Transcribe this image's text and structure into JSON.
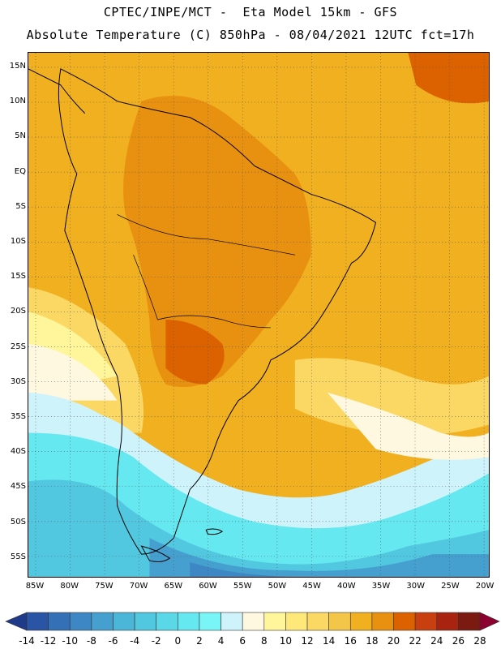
{
  "header": {
    "line1": "CPTEC/INPE/MCT -  Eta Model 15km - GFS",
    "line2": "Absolute Temperature (C) 850hPa - 08/04/2021 12UTC fct=17h"
  },
  "map": {
    "lat_labels": [
      "15N",
      "10N",
      "5N",
      "EQ",
      "5S",
      "10S",
      "15S",
      "20S",
      "25S",
      "30S",
      "35S",
      "40S",
      "45S",
      "50S",
      "55S"
    ],
    "lon_labels": [
      "85W",
      "80W",
      "75W",
      "70W",
      "65W",
      "60W",
      "55W",
      "50W",
      "45W",
      "40W",
      "35W",
      "30W",
      "25W",
      "20W"
    ],
    "grid": "dotted",
    "legend_placement": "bottom"
  },
  "colorbar": {
    "labels": [
      "-14",
      "-12",
      "-10",
      "-8",
      "-6",
      "-4",
      "-2",
      "0",
      "2",
      "4",
      "6",
      "8",
      "10",
      "12",
      "14",
      "16",
      "18",
      "20",
      "22",
      "24",
      "26",
      "28"
    ],
    "colors": [
      "#203a8a",
      "#2a55a4",
      "#3370b6",
      "#3d88c4",
      "#45a0cf",
      "#4bb6d8",
      "#52c8e0",
      "#5ad8e8",
      "#66e8f0",
      "#7af5f7",
      "#cff3fb",
      "#fff8e0",
      "#fff59a",
      "#ffe87a",
      "#fbd864",
      "#f3c548",
      "#f0b020",
      "#e89010",
      "#dc6200",
      "#c84010",
      "#a82410",
      "#7a1a10",
      "#8b0030"
    ]
  },
  "colors": {
    "hot": "#e89010",
    "warm": "#f0b020",
    "mild": "#fbd864",
    "neutral": "#fff8e0",
    "cool": "#66e8f0",
    "cold": "#45a0cf"
  }
}
